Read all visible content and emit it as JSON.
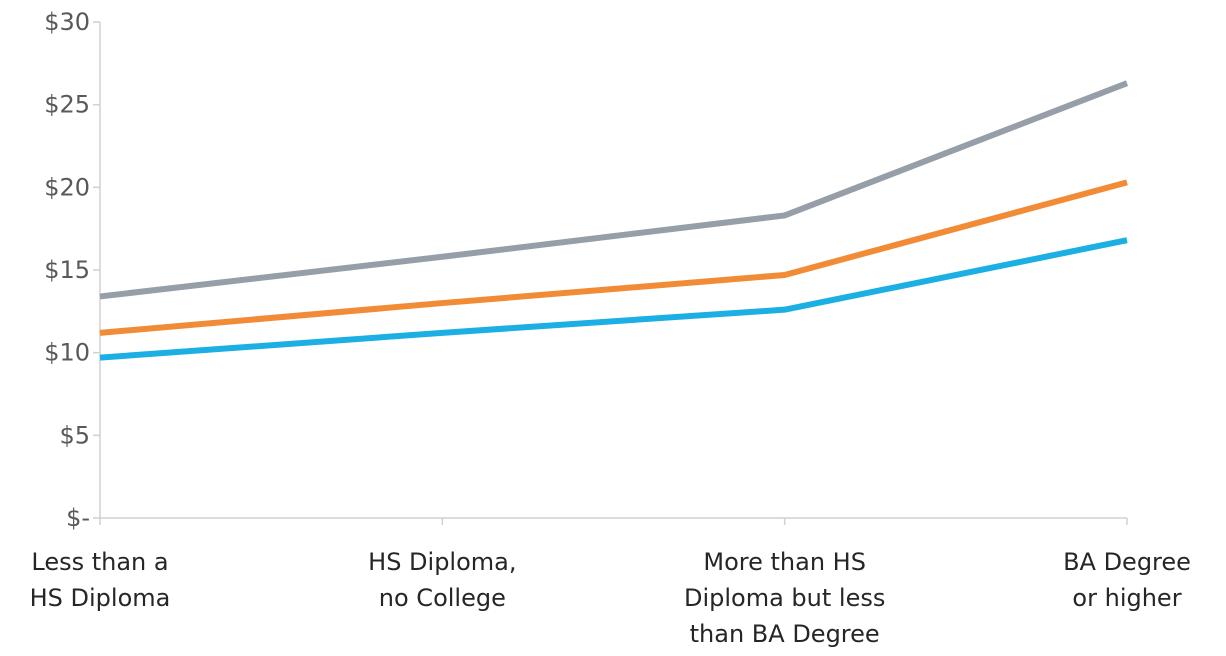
{
  "chart_data": {
    "type": "line",
    "title": "",
    "xlabel": "",
    "ylabel": "",
    "categories": [
      [
        "Less than a",
        "HS Diploma"
      ],
      [
        "HS Diploma,",
        "no College"
      ],
      [
        "More than HS",
        "Diploma but less",
        "than BA Degree"
      ],
      [
        "BA Degree",
        "or higher"
      ]
    ],
    "y_ticks": [
      {
        "value": 0,
        "label": "$-"
      },
      {
        "value": 5,
        "label": "$5"
      },
      {
        "value": 10,
        "label": "$10"
      },
      {
        "value": 15,
        "label": "$15"
      },
      {
        "value": 20,
        "label": "$20"
      },
      {
        "value": 25,
        "label": "$25"
      },
      {
        "value": 30,
        "label": "$30"
      }
    ],
    "ylim": [
      0,
      30
    ],
    "grid": false,
    "legend": "none",
    "series": [
      {
        "color": "#969ea7",
        "values": [
          13.4,
          15.8,
          18.3,
          26.3
        ]
      },
      {
        "color": "#f28b36",
        "values": [
          11.2,
          13.0,
          14.7,
          20.3
        ]
      },
      {
        "color": "#1cafe3",
        "values": [
          9.7,
          11.2,
          12.6,
          16.8
        ]
      }
    ]
  }
}
